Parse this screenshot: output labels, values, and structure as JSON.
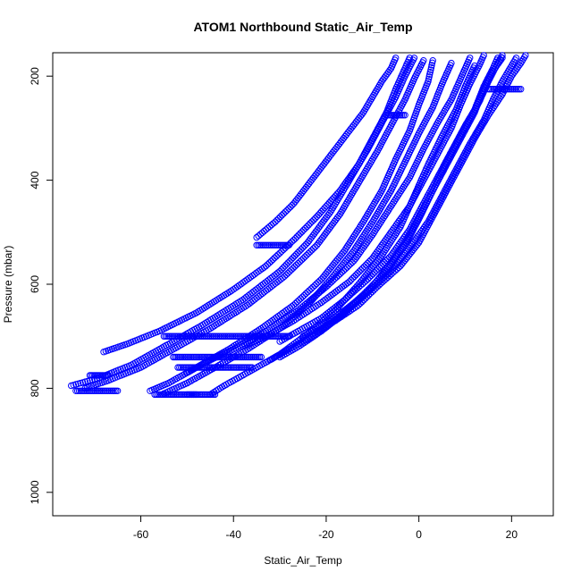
{
  "chart_data": {
    "type": "scatter",
    "title": "ATOM1 Northbound Static_Air_Temp",
    "xlabel": "Static_Air_Temp",
    "ylabel": "Pressure (mbar)",
    "xlim": [
      -79,
      29
    ],
    "ylim": [
      1045,
      155
    ],
    "y_reversed": true,
    "xticks": [
      -60,
      -40,
      -20,
      0,
      20
    ],
    "yticks": [
      200,
      400,
      600,
      800,
      1000
    ],
    "marker": "open-circle",
    "marker_color": "#0000ff",
    "grid": false,
    "series": [
      {
        "points": [
          [
            -75,
            795
          ],
          [
            -69,
            780
          ],
          [
            -62,
            755
          ],
          [
            -55,
            720
          ],
          [
            -47,
            680
          ],
          [
            -38,
            630
          ],
          [
            -30,
            575
          ],
          [
            -24,
            520
          ],
          [
            -19,
            460
          ],
          [
            -15,
            400
          ],
          [
            -11,
            340
          ],
          [
            -8,
            290
          ],
          [
            -5,
            240
          ],
          [
            -3,
            200
          ],
          [
            -1,
            165
          ]
        ]
      },
      {
        "points": [
          [
            -72,
            800
          ],
          [
            -67,
            785
          ],
          [
            -60,
            760
          ],
          [
            -53,
            725
          ],
          [
            -45,
            685
          ],
          [
            -37,
            640
          ],
          [
            -29,
            585
          ],
          [
            -22,
            525
          ],
          [
            -17,
            465
          ],
          [
            -13,
            405
          ],
          [
            -9,
            345
          ],
          [
            -6,
            295
          ],
          [
            -3,
            245
          ],
          [
            -1,
            205
          ],
          [
            1,
            170
          ]
        ]
      },
      {
        "points": [
          [
            -68,
            730
          ],
          [
            -63,
            715
          ],
          [
            -56,
            690
          ],
          [
            -48,
            655
          ],
          [
            -40,
            610
          ],
          [
            -33,
            565
          ],
          [
            -27,
            515
          ],
          [
            -22,
            470
          ],
          [
            -17,
            420
          ],
          [
            -13,
            370
          ],
          [
            -10,
            320
          ],
          [
            -7,
            270
          ],
          [
            -5,
            225
          ],
          [
            -3,
            185
          ],
          [
            -2,
            165
          ]
        ]
      },
      {
        "points": [
          [
            -58,
            805
          ],
          [
            -54,
            790
          ],
          [
            -48,
            760
          ],
          [
            -41,
            725
          ],
          [
            -34,
            685
          ],
          [
            -27,
            640
          ],
          [
            -21,
            590
          ],
          [
            -16,
            535
          ],
          [
            -12,
            480
          ],
          [
            -8,
            420
          ],
          [
            -5,
            360
          ],
          [
            -2,
            305
          ],
          [
            0,
            255
          ],
          [
            2,
            210
          ],
          [
            3,
            170
          ]
        ]
      },
      {
        "points": [
          [
            -55,
            810
          ],
          [
            -50,
            790
          ],
          [
            -44,
            760
          ],
          [
            -37,
            725
          ],
          [
            -30,
            685
          ],
          [
            -24,
            640
          ],
          [
            -19,
            590
          ],
          [
            -14,
            535
          ],
          [
            -10,
            480
          ],
          [
            -6,
            420
          ],
          [
            -3,
            365
          ],
          [
            0,
            310
          ],
          [
            3,
            260
          ],
          [
            5,
            215
          ],
          [
            7,
            175
          ]
        ]
      },
      {
        "points": [
          [
            -45,
            812
          ],
          [
            -42,
            795
          ],
          [
            -37,
            770
          ],
          [
            -30,
            735
          ],
          [
            -24,
            695
          ],
          [
            -18,
            650
          ],
          [
            -13,
            600
          ],
          [
            -8,
            545
          ],
          [
            -4,
            490
          ],
          [
            -1,
            430
          ],
          [
            2,
            370
          ],
          [
            5,
            315
          ],
          [
            8,
            265
          ],
          [
            10,
            220
          ],
          [
            12,
            180
          ]
        ]
      },
      {
        "points": [
          [
            -50,
            770
          ],
          [
            -46,
            750
          ],
          [
            -40,
            725
          ],
          [
            -33,
            690
          ],
          [
            -26,
            650
          ],
          [
            -20,
            605
          ],
          [
            -14,
            555
          ],
          [
            -10,
            505
          ],
          [
            -6,
            450
          ],
          [
            -2,
            395
          ],
          [
            1,
            340
          ],
          [
            4,
            290
          ],
          [
            7,
            245
          ],
          [
            9,
            205
          ],
          [
            11,
            165
          ]
        ]
      },
      {
        "points": [
          [
            -38,
            720
          ],
          [
            -33,
            700
          ],
          [
            -27,
            670
          ],
          [
            -21,
            635
          ],
          [
            -15,
            595
          ],
          [
            -10,
            550
          ],
          [
            -6,
            500
          ],
          [
            -2,
            450
          ],
          [
            1,
            400
          ],
          [
            4,
            350
          ],
          [
            7,
            300
          ],
          [
            9,
            255
          ],
          [
            11,
            215
          ],
          [
            13,
            180
          ],
          [
            14,
            160
          ]
        ]
      },
      {
        "points": [
          [
            -32,
            745
          ],
          [
            -28,
            725
          ],
          [
            -22,
            695
          ],
          [
            -17,
            660
          ],
          [
            -12,
            620
          ],
          [
            -7,
            575
          ],
          [
            -3,
            525
          ],
          [
            0,
            475
          ],
          [
            3,
            420
          ],
          [
            6,
            365
          ],
          [
            9,
            315
          ],
          [
            12,
            265
          ],
          [
            14,
            220
          ],
          [
            16,
            185
          ],
          [
            17,
            165
          ]
        ]
      },
      {
        "points": [
          [
            -30,
            710
          ],
          [
            -26,
            690
          ],
          [
            -21,
            665
          ],
          [
            -16,
            630
          ],
          [
            -11,
            590
          ],
          [
            -6,
            545
          ],
          [
            -2,
            495
          ],
          [
            1,
            445
          ],
          [
            4,
            395
          ],
          [
            7,
            345
          ],
          [
            10,
            295
          ],
          [
            13,
            250
          ],
          [
            15,
            210
          ],
          [
            17,
            175
          ],
          [
            18,
            160
          ]
        ]
      },
      {
        "points": [
          [
            -25,
            700
          ],
          [
            -21,
            680
          ],
          [
            -16,
            650
          ],
          [
            -11,
            615
          ],
          [
            -6,
            575
          ],
          [
            -2,
            530
          ],
          [
            2,
            480
          ],
          [
            5,
            430
          ],
          [
            8,
            380
          ],
          [
            11,
            330
          ],
          [
            14,
            285
          ],
          [
            16,
            245
          ],
          [
            18,
            210
          ],
          [
            20,
            180
          ],
          [
            21,
            165
          ]
        ]
      },
      {
        "points": [
          [
            -22,
            690
          ],
          [
            -18,
            670
          ],
          [
            -13,
            640
          ],
          [
            -9,
            605
          ],
          [
            -4,
            565
          ],
          [
            0,
            520
          ],
          [
            3,
            470
          ],
          [
            6,
            420
          ],
          [
            9,
            370
          ],
          [
            12,
            320
          ],
          [
            15,
            275
          ],
          [
            18,
            235
          ],
          [
            20,
            200
          ],
          [
            22,
            175
          ],
          [
            23,
            160
          ]
        ]
      },
      {
        "points": [
          [
            -35,
            510
          ],
          [
            -31,
            480
          ],
          [
            -27,
            445
          ],
          [
            -24,
            410
          ],
          [
            -21,
            375
          ],
          [
            -18,
            340
          ],
          [
            -15,
            305
          ],
          [
            -12,
            270
          ],
          [
            -10,
            240
          ],
          [
            -8,
            210
          ],
          [
            -6,
            185
          ],
          [
            -5,
            165
          ]
        ]
      },
      {
        "points": [
          [
            -30,
            740
          ],
          [
            -26,
            720
          ],
          [
            -21,
            690
          ],
          [
            -16,
            655
          ],
          [
            -11,
            615
          ],
          [
            -7,
            570
          ],
          [
            -3,
            520
          ],
          [
            0,
            470
          ],
          [
            3,
            420
          ],
          [
            6,
            370
          ],
          [
            9,
            320
          ],
          [
            12,
            270
          ],
          [
            14,
            225
          ],
          [
            16,
            190
          ],
          [
            18,
            165
          ]
        ]
      }
    ],
    "segments": [
      {
        "x": [
          -55,
          -28
        ],
        "y": 700
      },
      {
        "x": [
          -53,
          -34
        ],
        "y": 740
      },
      {
        "x": [
          -52,
          -36
        ],
        "y": 760
      },
      {
        "x": [
          -35,
          -28
        ],
        "y": 525
      },
      {
        "x": [
          -7,
          -3
        ],
        "y": 275
      },
      {
        "x": [
          -74,
          -65
        ],
        "y": 805
      },
      {
        "x": [
          -71,
          -67
        ],
        "y": 775
      },
      {
        "x": [
          -57,
          -48
        ],
        "y": 812
      },
      {
        "x": [
          -50,
          -44
        ],
        "y": 812
      },
      {
        "x": [
          15,
          22
        ],
        "y": 225
      }
    ]
  }
}
